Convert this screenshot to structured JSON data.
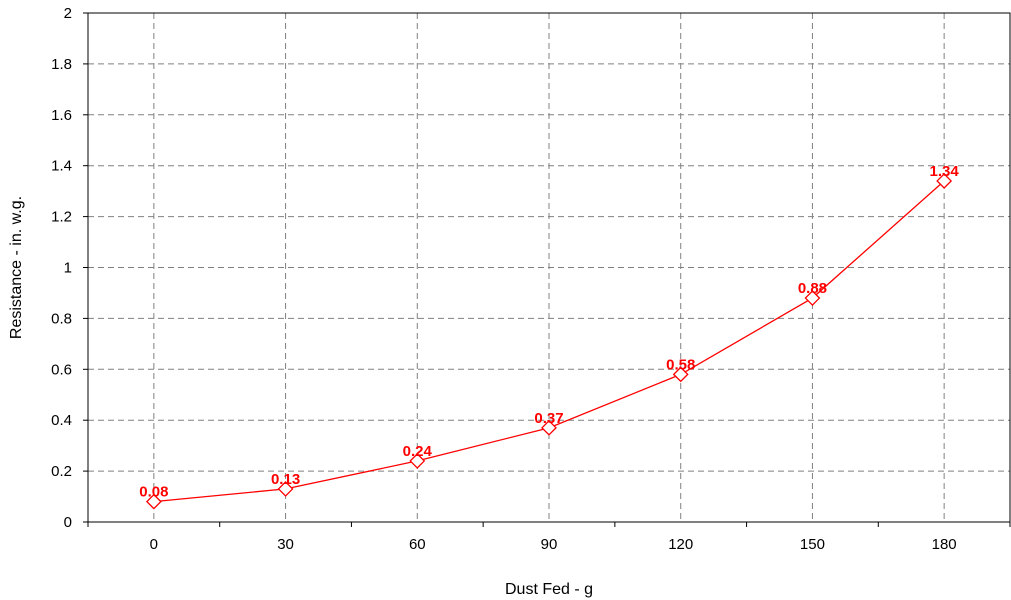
{
  "chart_data": {
    "type": "line",
    "xlabel": "Dust Fed - g",
    "ylabel": "Resistance - in. w.g.",
    "x": [
      0,
      30,
      60,
      90,
      120,
      150,
      180
    ],
    "x_tick_labels": [
      "0",
      "30",
      "60",
      "90",
      "120",
      "150",
      "180"
    ],
    "y_tick_labels": [
      "0",
      "0.2",
      "0.4",
      "0.6",
      "0.8",
      "1",
      "1.2",
      "1.4",
      "1.6",
      "1.8",
      "2"
    ],
    "ylim": [
      0,
      2
    ],
    "grid": true,
    "series": [
      {
        "values": [
          0.08,
          0.13,
          0.24,
          0.37,
          0.58,
          0.88,
          1.34
        ],
        "data_labels": [
          "0.08",
          "0.13",
          "0.24",
          "0.37",
          "0.58",
          "0.88",
          "1.34"
        ],
        "color": "#ff0000",
        "marker": "diamond-open"
      }
    ]
  }
}
